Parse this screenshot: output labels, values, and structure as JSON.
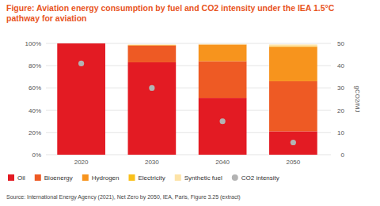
{
  "chart_data": {
    "type": "bar",
    "title": "Figure: Aviation energy consumption by fuel and CO2 intensity under the IEA 1.5°C pathway for aviation",
    "categories": [
      "2020",
      "2030",
      "2040",
      "2050"
    ],
    "stacked": true,
    "grid": true,
    "legend": "bottom",
    "ylim": [
      0,
      100
    ],
    "yticks": [
      {
        "value": 0,
        "label": "0%"
      },
      {
        "value": 20,
        "label": "20%"
      },
      {
        "value": 40,
        "label": "40%"
      },
      {
        "value": 60,
        "label": "60%"
      },
      {
        "value": 80,
        "label": "80%"
      },
      {
        "value": 100,
        "label": "100%"
      }
    ],
    "y2lim": [
      0,
      50
    ],
    "y2ticks": [
      0,
      10,
      20,
      30,
      40,
      50
    ],
    "y2label": "gCO2/MJ",
    "series": [
      {
        "name": "Oil",
        "type": "bar",
        "color": "#e31b23",
        "values": [
          100,
          83,
          51,
          21
        ]
      },
      {
        "name": "Bioenergy",
        "type": "bar",
        "color": "#ee5a24",
        "values": [
          0,
          15,
          33,
          45
        ]
      },
      {
        "name": "Hydrogen",
        "type": "bar",
        "color": "#f7941d",
        "values": [
          0,
          0.5,
          15,
          31
        ]
      },
      {
        "name": "Electricity",
        "type": "bar",
        "color": "#f9c01a",
        "values": [
          0,
          0,
          0,
          0.5
        ]
      },
      {
        "name": "Synthetic fuel",
        "type": "bar",
        "color": "#fde3a7",
        "values": [
          0,
          0.5,
          0.5,
          1.5
        ]
      },
      {
        "name": "CO2 intensity",
        "type": "scatter",
        "axis": "y2",
        "marker": "circle",
        "color": "#b3b3b3",
        "values": [
          41,
          30,
          15,
          5.5
        ]
      }
    ],
    "source": "Source: International Energy Agency (2021), Net Zero by 2050, IEA, Paris, Figure 3.25 (extract)"
  }
}
